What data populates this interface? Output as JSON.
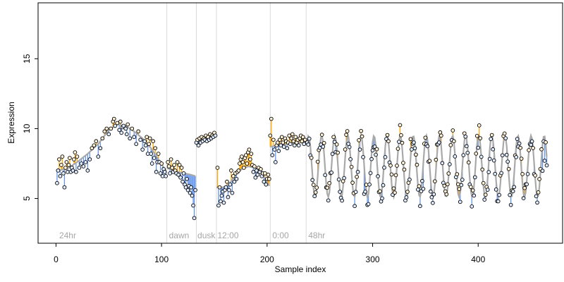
{
  "chart_data": {
    "type": "scatter",
    "title": "",
    "xlabel": "Sample index",
    "ylabel": "Expression",
    "xlim": [
      -17,
      480
    ],
    "ylim": [
      1.8,
      19.0
    ],
    "x_ticks": [
      0,
      100,
      200,
      300,
      400
    ],
    "y_ticks": [
      5,
      10,
      15
    ],
    "grid": false,
    "legend": "none",
    "colors": {
      "fit_line": "#a9a9a9",
      "residual_above": "#ffa500",
      "residual_below": "#6495ed",
      "boundary": "#d9d9d9",
      "point_edge": "#000000",
      "section_label": "#a6a6a6"
    },
    "sections": [
      {
        "label": "24hr",
        "x": 3,
        "boundary": null
      },
      {
        "label": "dawn",
        "x": 107,
        "boundary": 105
      },
      {
        "label": "dusk",
        "x": 134,
        "boundary": 133
      },
      {
        "label": "12:00",
        "x": 153,
        "boundary": 152
      },
      {
        "label": "0:00",
        "x": 205,
        "boundary": 203
      },
      {
        "label": "48hr",
        "x": 239,
        "boundary": 237
      }
    ],
    "segments": [
      {
        "name": "24hr",
        "start": 1,
        "end": 104,
        "fit": [
          [
            0,
            7.0
          ],
          [
            10,
            7.1
          ],
          [
            20,
            7.6
          ],
          [
            30,
            8.2
          ],
          [
            40,
            8.9
          ],
          [
            50,
            9.9
          ],
          [
            58,
            10.3
          ],
          [
            66,
            10.2
          ],
          [
            74,
            9.8
          ],
          [
            82,
            9.3
          ],
          [
            90,
            8.6
          ],
          [
            97,
            7.8
          ],
          [
            104,
            7.0
          ]
        ],
        "points": [
          [
            1,
            6.1
          ],
          [
            2,
            7.0
          ],
          [
            3,
            7.8
          ],
          [
            4,
            6.6
          ],
          [
            5,
            7.4
          ],
          [
            6,
            8.0
          ],
          [
            7,
            6.8
          ],
          [
            8,
            5.8
          ],
          [
            9,
            7.2
          ],
          [
            10,
            7.6
          ],
          [
            11,
            6.9
          ],
          [
            12,
            7.4
          ],
          [
            13,
            7.9
          ],
          [
            14,
            6.9
          ],
          [
            15,
            7.2
          ],
          [
            16,
            7.0
          ],
          [
            17,
            7.8
          ],
          [
            18,
            8.3
          ],
          [
            19,
            6.9
          ],
          [
            20,
            8.0
          ],
          [
            22,
            7.2
          ],
          [
            24,
            7.5
          ],
          [
            26,
            7.3
          ],
          [
            28,
            7.6
          ],
          [
            30,
            7.0
          ],
          [
            32,
            7.8
          ],
          [
            34,
            8.6
          ],
          [
            36,
            8.8
          ],
          [
            38,
            9.1
          ],
          [
            40,
            8.0
          ],
          [
            42,
            8.6
          ],
          [
            44,
            9.3
          ],
          [
            46,
            9.8
          ],
          [
            48,
            10.0
          ],
          [
            50,
            9.6
          ],
          [
            52,
            10.0
          ],
          [
            54,
            10.5
          ],
          [
            55,
            10.7
          ],
          [
            56,
            10.2
          ],
          [
            58,
            10.4
          ],
          [
            60,
            9.9
          ],
          [
            61,
            10.5
          ],
          [
            62,
            9.7
          ],
          [
            63,
            10.1
          ],
          [
            64,
            10.2
          ],
          [
            66,
            10.0
          ],
          [
            67,
            9.6
          ],
          [
            68,
            10.3
          ],
          [
            70,
            9.3
          ],
          [
            72,
            10.0
          ],
          [
            74,
            9.4
          ],
          [
            76,
            8.9
          ],
          [
            78,
            9.8
          ],
          [
            80,
            9.2
          ],
          [
            82,
            8.5
          ],
          [
            84,
            9.1
          ],
          [
            85,
            8.8
          ],
          [
            86,
            9.4
          ],
          [
            87,
            8.2
          ],
          [
            88,
            8.9
          ],
          [
            89,
            9.3
          ],
          [
            90,
            8.2
          ],
          [
            91,
            7.5
          ],
          [
            92,
            9.1
          ],
          [
            93,
            7.9
          ],
          [
            94,
            8.6
          ],
          [
            95,
            6.9
          ],
          [
            96,
            7.6
          ],
          [
            97,
            8.2
          ],
          [
            98,
            7.6
          ],
          [
            99,
            6.8
          ],
          [
            100,
            7.5
          ],
          [
            101,
            6.6
          ],
          [
            102,
            7.1
          ],
          [
            103,
            6.9
          ],
          [
            104,
            6.6
          ]
        ]
      },
      {
        "name": "dawn",
        "start": 105,
        "end": 132,
        "fit": [
          [
            105,
            7.2
          ],
          [
            110,
            7.0
          ],
          [
            116,
            6.9
          ],
          [
            122,
            6.8
          ],
          [
            128,
            6.7
          ],
          [
            132,
            6.6
          ]
        ],
        "points": [
          [
            106,
            7.6
          ],
          [
            107,
            7.3
          ],
          [
            108,
            6.8
          ],
          [
            109,
            7.8
          ],
          [
            110,
            7.2
          ],
          [
            111,
            6.9
          ],
          [
            112,
            7.4
          ],
          [
            113,
            7.0
          ],
          [
            114,
            6.8
          ],
          [
            115,
            7.6
          ],
          [
            116,
            6.7
          ],
          [
            117,
            7.4
          ],
          [
            118,
            6.5
          ],
          [
            119,
            7.2
          ],
          [
            120,
            6.2
          ],
          [
            121,
            6.8
          ],
          [
            122,
            6.0
          ],
          [
            123,
            5.8
          ],
          [
            124,
            6.4
          ],
          [
            125,
            5.6
          ],
          [
            126,
            5.9
          ],
          [
            127,
            5.4
          ],
          [
            128,
            5.8
          ],
          [
            129,
            5.2
          ],
          [
            130,
            4.5
          ],
          [
            131,
            3.6
          ],
          [
            132,
            5.6
          ]
        ]
      },
      {
        "name": "dusk",
        "start": 133,
        "end": 151,
        "fit": [
          [
            133,
            9.1
          ],
          [
            140,
            9.25
          ],
          [
            146,
            9.4
          ],
          [
            151,
            9.6
          ]
        ],
        "points": [
          [
            133,
            9.0
          ],
          [
            134,
            9.2
          ],
          [
            135,
            8.8
          ],
          [
            136,
            9.3
          ],
          [
            137,
            9.0
          ],
          [
            138,
            9.4
          ],
          [
            139,
            9.1
          ],
          [
            140,
            9.3
          ],
          [
            141,
            9.2
          ],
          [
            142,
            9.5
          ],
          [
            143,
            9.1
          ],
          [
            144,
            9.4
          ],
          [
            145,
            9.2
          ],
          [
            146,
            9.6
          ],
          [
            147,
            9.3
          ],
          [
            148,
            9.5
          ],
          [
            149,
            9.4
          ],
          [
            150,
            9.7
          ],
          [
            151,
            9.5
          ]
        ]
      },
      {
        "name": "12:00",
        "start": 152,
        "end": 202,
        "fit": [
          [
            152,
            5.8
          ],
          [
            158,
            5.8
          ],
          [
            164,
            6.0
          ],
          [
            170,
            6.7
          ],
          [
            176,
            7.1
          ],
          [
            182,
            7.3
          ],
          [
            188,
            7.2
          ],
          [
            194,
            7.0
          ],
          [
            202,
            5.9
          ]
        ],
        "points": [
          [
            153,
            7.2
          ],
          [
            154,
            4.5
          ],
          [
            155,
            5.8
          ],
          [
            156,
            4.8
          ],
          [
            157,
            5.2
          ],
          [
            158,
            5.5
          ],
          [
            159,
            4.7
          ],
          [
            160,
            5.6
          ],
          [
            161,
            5.8
          ],
          [
            162,
            6.2
          ],
          [
            163,
            5.1
          ],
          [
            164,
            5.6
          ],
          [
            165,
            6.0
          ],
          [
            166,
            7.0
          ],
          [
            167,
            5.4
          ],
          [
            168,
            6.6
          ],
          [
            169,
            6.2
          ],
          [
            170,
            6.8
          ],
          [
            171,
            6.4
          ],
          [
            172,
            6.9
          ],
          [
            173,
            7.0
          ],
          [
            174,
            7.5
          ],
          [
            175,
            7.8
          ],
          [
            176,
            8.0
          ],
          [
            177,
            7.6
          ],
          [
            178,
            7.2
          ],
          [
            179,
            7.9
          ],
          [
            180,
            8.1
          ],
          [
            181,
            7.5
          ],
          [
            182,
            8.3
          ],
          [
            183,
            8.5
          ],
          [
            184,
            7.8
          ],
          [
            185,
            8.2
          ],
          [
            186,
            7.4
          ],
          [
            187,
            6.9
          ],
          [
            188,
            7.3
          ],
          [
            189,
            6.5
          ],
          [
            190,
            7.0
          ],
          [
            191,
            6.7
          ],
          [
            192,
            7.2
          ],
          [
            193,
            6.9
          ],
          [
            194,
            7.1
          ],
          [
            195,
            6.6
          ],
          [
            196,
            6.8
          ],
          [
            197,
            6.2
          ],
          [
            198,
            6.8
          ],
          [
            199,
            6.0
          ],
          [
            200,
            6.4
          ],
          [
            201,
            6.7
          ],
          [
            202,
            6.4
          ]
        ]
      },
      {
        "name": "0:00",
        "start": 203,
        "end": 236,
        "fit": [
          [
            203,
            8.7
          ],
          [
            210,
            8.8
          ],
          [
            220,
            8.9
          ],
          [
            228,
            9.0
          ],
          [
            236,
            9.0
          ]
        ],
        "points": [
          [
            203,
            9.5
          ],
          [
            204,
            10.7
          ],
          [
            205,
            8.1
          ],
          [
            206,
            9.2
          ],
          [
            207,
            8.5
          ],
          [
            208,
            7.6
          ],
          [
            209,
            8.8
          ],
          [
            210,
            9.0
          ],
          [
            211,
            8.4
          ],
          [
            212,
            9.2
          ],
          [
            213,
            8.8
          ],
          [
            214,
            9.4
          ],
          [
            215,
            9.0
          ],
          [
            216,
            8.7
          ],
          [
            217,
            9.3
          ],
          [
            218,
            9.1
          ],
          [
            219,
            8.6
          ],
          [
            220,
            9.0
          ],
          [
            221,
            9.5
          ],
          [
            222,
            8.9
          ],
          [
            223,
            9.3
          ],
          [
            224,
            9.6
          ],
          [
            225,
            9.1
          ],
          [
            226,
            8.8
          ],
          [
            227,
            9.4
          ],
          [
            228,
            9.0
          ],
          [
            229,
            9.2
          ],
          [
            230,
            8.8
          ],
          [
            231,
            9.3
          ],
          [
            232,
            9.5
          ],
          [
            233,
            9.1
          ],
          [
            234,
            9.4
          ],
          [
            235,
            8.9
          ],
          [
            236,
            9.2
          ]
        ]
      }
    ],
    "oscillating_segment": {
      "name": "48hr",
      "start": 238,
      "end": 465,
      "mean": 7.3,
      "amplitude": 2.2,
      "period": 12.4,
      "phase": 0.9
    }
  }
}
